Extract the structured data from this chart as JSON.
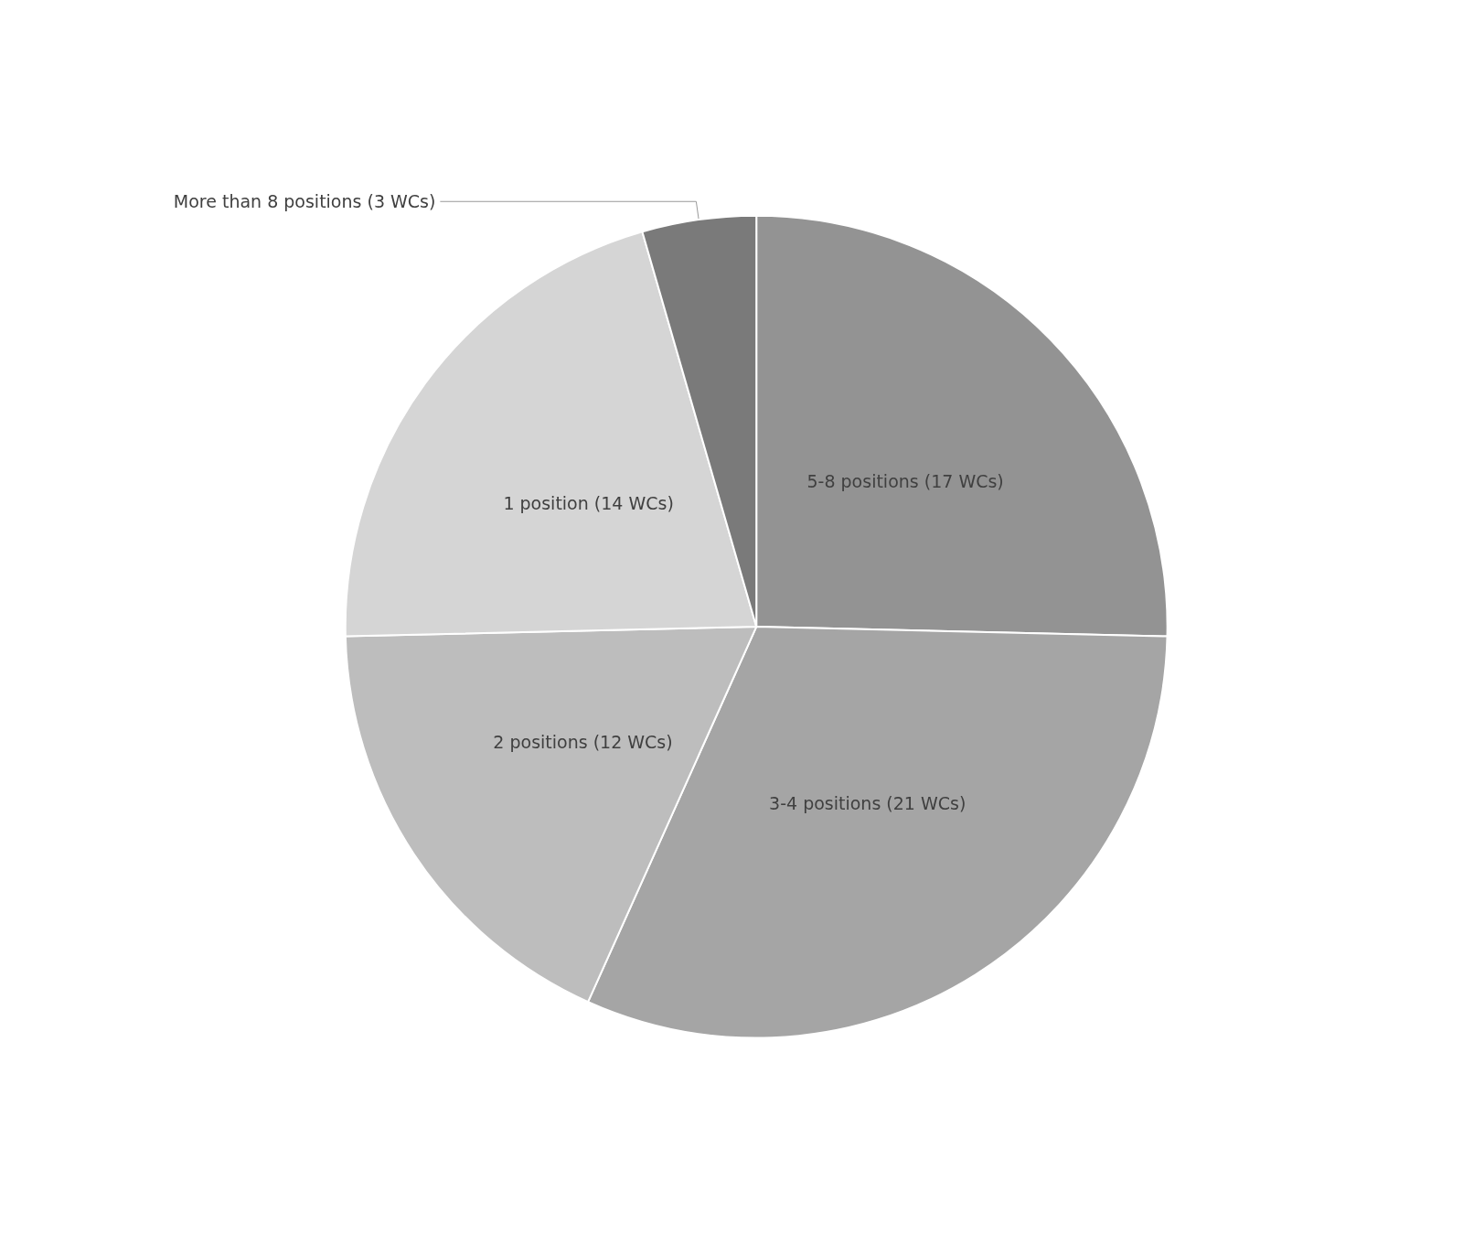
{
  "chart_data": {
    "type": "pie",
    "categories": [
      "5-8 positions (17 WCs)",
      "3-4 positions (21 WCs)",
      "2 positions (12 WCs)",
      "1 position (14 WCs)",
      "More than 8 positions (3 WCs)"
    ],
    "values": [
      17,
      21,
      12,
      14,
      3
    ],
    "colors": [
      "#939393",
      "#a5a5a5",
      "#bdbdbd",
      "#d5d5d5",
      "#7a7a7a"
    ],
    "legend": false
  }
}
